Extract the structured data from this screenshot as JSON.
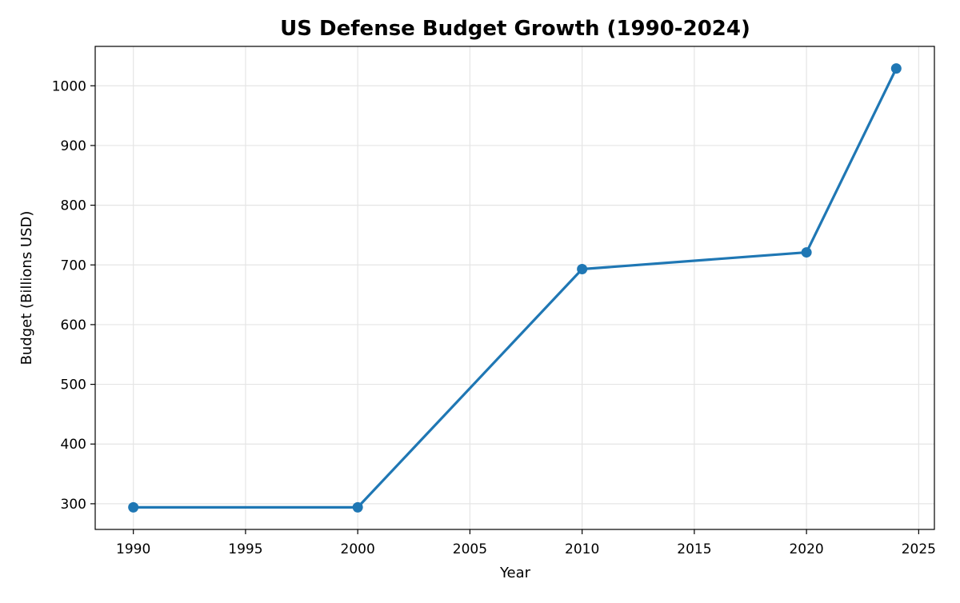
{
  "chart_data": {
    "type": "line",
    "title": "US Defense Budget Growth (1990-2024)",
    "xlabel": "Year",
    "ylabel": "Budget (Billions USD)",
    "x": [
      1990,
      2000,
      2010,
      2020,
      2024
    ],
    "values": [
      294,
      294,
      693,
      721,
      1029
    ],
    "xlim": [
      1988.3,
      2025.7
    ],
    "ylim": [
      257,
      1066
    ],
    "xticks": [
      1990,
      1995,
      2000,
      2005,
      2010,
      2015,
      2020,
      2025
    ],
    "yticks": [
      300,
      400,
      500,
      600,
      700,
      800,
      900,
      1000
    ],
    "grid": true,
    "marker": "circle",
    "color": "#1f77b4"
  }
}
